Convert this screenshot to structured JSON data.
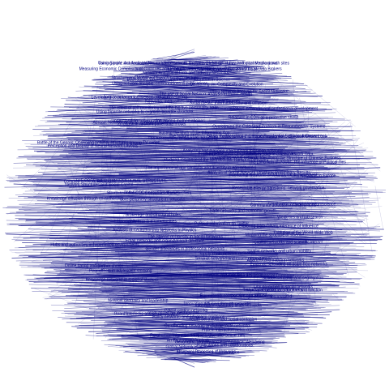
{
  "theme": {
    "background": "#ffffff",
    "ink": "#000080"
  },
  "labels": [
    "Turning point: Academic papers on social network analysis; Global structures and microscopic growth sites",
    "Using Simple and Available Network for research: The Network Model of Psychological Mechanisms",
    "Measuring Economic Complexity of Countries and Products: Which Metric to Use? The Structure of Data Brokers",
    "The Structure of Data Networks: International Trade",
    "Network Analysis of Firm and Industry Networks",
    "Structure and Mobility of French biotech startups",
    "Boundaries: Boundary Spanning Collaboration in Science",
    "Using network analysis: collaborations in publications",
    "On moving on: Complexity and Evolution",
    "Using Network Analysis for Social Networks",
    "The use of Social Network Analysis in Public Health",
    "Leveraging complementary versus affiliation networks",
    "Influence propagation in social networks",
    "Networks, inequalities and receiving multiple sources",
    "Social media: Information flow and diffusion",
    "The effect of self-monitoring and the big five personality traits",
    "Peruvian teachers' networks and professional development",
    "Using bipartite networks to examine bipartite structure",
    "Relatives in CDN as a protective shield",
    "Understanding collaboration among mathematicians",
    "Abroad: Network analysis of migrant flows",
    "longitudinal network panel data model",
    "Overcoming the Cold-Start Problem in Recommender Systems",
    "Busting the Myth of the Information Age",
    "The Nature of Cross-Ethnic Relationships in Diverse Residential Settings: A Closer Look",
    "From 'Digital Natives' to 'Digital Immigrants': Age and Network Use",
    "The Accessibility of Scientific Networks",
    "Battle of the Genres: Observing network structures among TV series",
    "Perception and Display of Neural Network Layouts",
    "Analyzing and mapping international migration networks",
    "Competition and Cooperation in Scientific Networks",
    "From RDBMS to Graph Databases: Online Social Network Data",
    "Guanxi as social network: Identifying the Structure of Chinese Business",
    "Studying resilience of the Metropolitan Transport Networks",
    "The Long Arm of Power: The Influence of Political Ties",
    "The importance of age similarity and diversity in ego networks",
    "Analysis of Social Network Structure: Preliminary Results",
    "Climate Policy Networks in Europe",
    "Friendship Networks and Academic Achievement",
    "THE OBSERVED TRANSNATIONAL STRUCTURE",
    "Complex Network Research",
    "Network Structures and Social Capital",
    "Renewable energy transitions: network governance",
    "Structure of the OTC Derivatives Market",
    "Collaborative networks of researchers",
    "Knowledge diffusion through co-authorship",
    "Core-periphery structure in networks",
    "Small world networks in neuroscience",
    "Community detection in large graphs",
    "Trade networks and economic growth",
    "Brokerage and structural holes",
    "Weak ties and job search",
    "Homophily in online communities",
    "Political polarization on Twitter",
    "Exploring Data-Driven Inference of Influence",
    "Analysis of Co-authorship Networks in Physics",
    "Evolution of the World Wide Web",
    "Mapping the structure of science",
    "The Spread of Obesity in Social Networks",
    "Email networks and organizational structure",
    "Citation networks and scientific impact",
    "Hubs and authorities in hyperlinked environments",
    "Gender differences in professional networks",
    "Spatial networks and urban mobility",
    "Supply chain network resilience",
    "Alliances and interfirm networks",
    "Terrorist networks and covert organizations",
    "Epidemic spreading on scale-free networks",
    "Online dating and partner choice",
    "Peer effects in adolescent smoking",
    "Network Structure of Financial Contagion",
    "Family networks and migration decisions",
    "School friendship and segregation",
    "Knowledge networks in regional clusters",
    "Link prediction in social networks",
    "Temporal networks and dynamics",
    "Multilayer networks: structure and function",
    "Ego network composition and well-being",
    "The strength of weak ties revisited",
    "Network centrality and leadership",
    "Information cascades in social media",
    "Innovation diffusion through networks",
    "Patent citation networks",
    "Board interlocks and corporate governance",
    "Team assembly mechanisms",
    "Policy networks and advocacy coalitions",
    "Health behaviour and social contagion",
    "Co-offending networks and crime",
    "Airline route networks",
    "Protein interaction networks",
    "Social Media Use and Offline Ties",
    "Rural-urban migration flows in Indonesia",
    "Geographic Mobility and Psychological Well-being",
    "An Exploratory Analysis",
    "Publications and collaborations",
    "Global Network Practices",
    "Structural Properties of Networks",
    "Analysis of Research Collaboration"
  ]
}
